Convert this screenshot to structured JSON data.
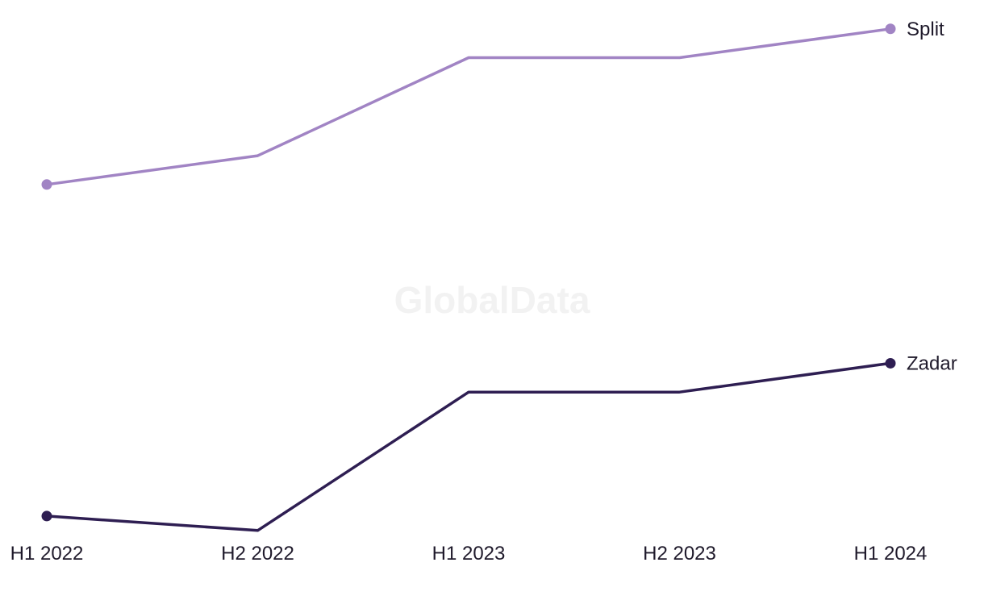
{
  "watermark": "GlobalData",
  "chart_data": {
    "type": "line",
    "title": "",
    "xlabel": "",
    "ylabel": "",
    "grid": false,
    "legend": "direct labels at line ends",
    "categories": [
      "H1 2022",
      "H2 2022",
      "H1 2023",
      "H2 2023",
      "H1 2024"
    ],
    "ylim": [
      0,
      100
    ],
    "series": [
      {
        "name": "Split",
        "color": "#a184c4",
        "values": [
          68,
          73,
          90,
          90,
          95
        ]
      },
      {
        "name": "Zadar",
        "color": "#2e1e52",
        "values": [
          10.5,
          8,
          32,
          32,
          37
        ]
      }
    ]
  }
}
